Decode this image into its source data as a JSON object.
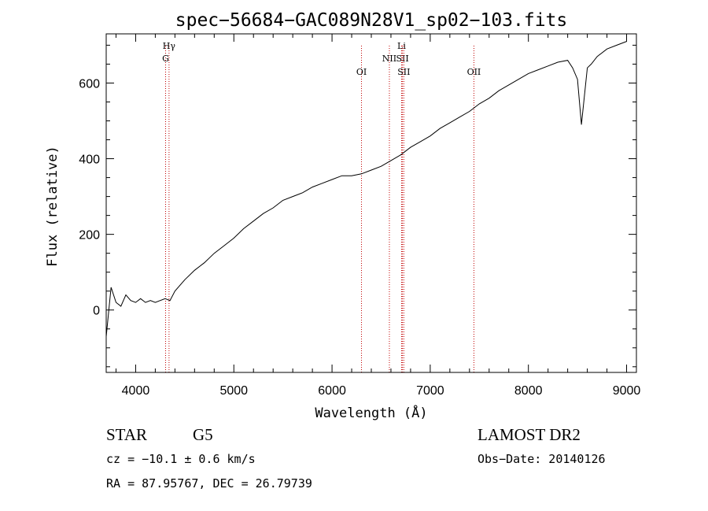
{
  "chart_data": {
    "type": "line",
    "title": "spec−56684−GAC089N28V1_sp02−103.fits",
    "xlabel": "Wavelength (Å)",
    "ylabel": "Flux (relative)",
    "xlim": [
      3700,
      9100
    ],
    "ylim": [
      -165,
      730
    ],
    "xticks": [
      4000,
      5000,
      6000,
      7000,
      8000,
      9000
    ],
    "yticks": [
      0,
      200,
      400,
      600
    ],
    "grid": false,
    "series": [
      {
        "x": [
          3700,
          3750,
          3800,
          3850,
          3900,
          3950,
          4000,
          4050,
          4100,
          4150,
          4200,
          4250,
          4300,
          4350,
          4400,
          4500,
          4600,
          4700,
          4800,
          4900,
          5000,
          5100,
          5200,
          5300,
          5400,
          5500,
          5600,
          5700,
          5800,
          5900,
          6000,
          6100,
          6200,
          6300,
          6400,
          6500,
          6600,
          6700,
          6800,
          6900,
          7000,
          7100,
          7200,
          7300,
          7400,
          7500,
          7600,
          7700,
          7800,
          7900,
          8000,
          8100,
          8200,
          8300,
          8400,
          8450,
          8500,
          8540,
          8600,
          8640,
          8700,
          8800,
          8900,
          9000
        ],
        "y": [
          -70,
          60,
          20,
          10,
          40,
          25,
          20,
          30,
          20,
          25,
          20,
          25,
          30,
          25,
          50,
          80,
          105,
          125,
          150,
          170,
          190,
          215,
          235,
          255,
          270,
          290,
          300,
          310,
          325,
          335,
          345,
          355,
          355,
          360,
          370,
          380,
          395,
          410,
          430,
          445,
          460,
          480,
          495,
          510,
          525,
          545,
          560,
          580,
          595,
          610,
          625,
          635,
          645,
          655,
          660,
          640,
          610,
          490,
          640,
          650,
          670,
          690,
          700,
          710
        ]
      }
    ],
    "lines": [
      {
        "label": "Hγ",
        "x": 4340,
        "row": 1
      },
      {
        "label": "G",
        "x": 4305,
        "row": 2
      },
      {
        "label": "OI",
        "x": 6300,
        "row": 3
      },
      {
        "label": "NII",
        "x": 6584,
        "row": 2
      },
      {
        "label": "Li",
        "x": 6708,
        "row": 1
      },
      {
        "label": "SII",
        "x": 6717,
        "row": 2
      },
      {
        "label": "SII",
        "x": 6731,
        "row": 3
      },
      {
        "label": "OII",
        "x": 7445,
        "row": 3
      }
    ]
  },
  "info": {
    "class": "STAR",
    "subclass": "G5",
    "survey": "LAMOST DR2",
    "cz": "cz = −10.1 ± 0.6 km/s",
    "obsdate": "Obs−Date: 20140126",
    "radec": "RA =  87.95767, DEC =  26.79739"
  }
}
